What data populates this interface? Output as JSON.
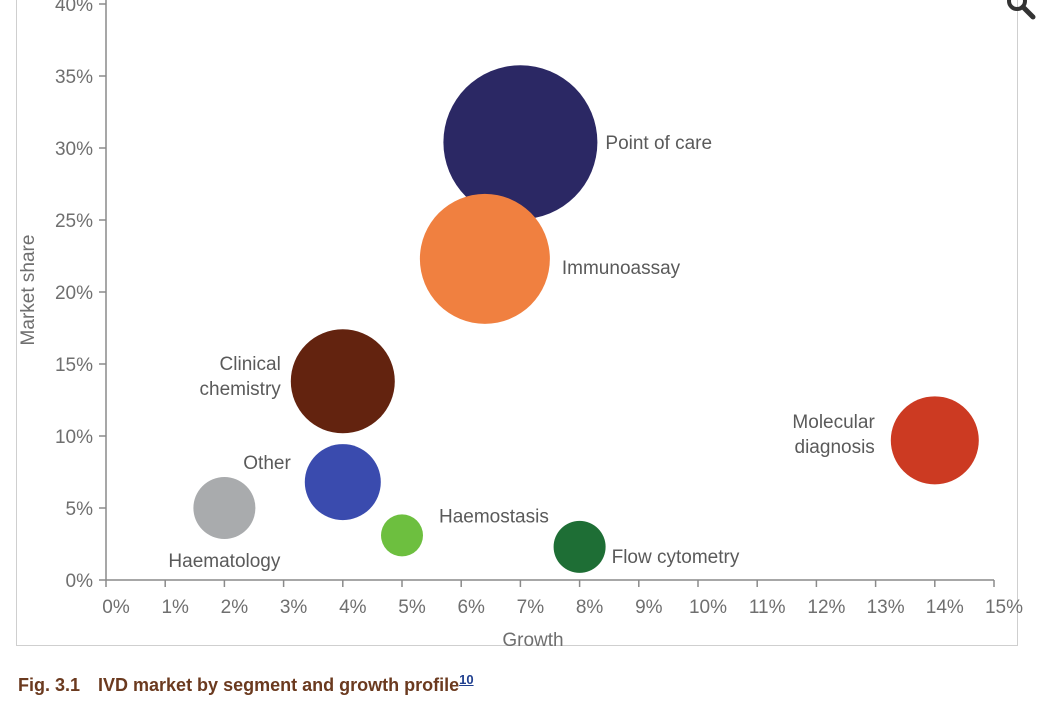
{
  "chart_data": {
    "type": "scatter",
    "xlabel": "Growth",
    "ylabel": "Market share",
    "xlim": [
      0,
      15
    ],
    "ylim": [
      0,
      40
    ],
    "x_ticks": [
      "0%",
      "1%",
      "2%",
      "3%",
      "4%",
      "5%",
      "6%",
      "7%",
      "8%",
      "9%",
      "10%",
      "11%",
      "12%",
      "13%",
      "14%",
      "15%"
    ],
    "y_ticks": [
      "0%",
      "5%",
      "10%",
      "15%",
      "20%",
      "25%",
      "30%",
      "35%",
      "40%"
    ],
    "grid": false,
    "bubbles": [
      {
        "label": "Point of care",
        "x": 7.0,
        "y": 30.4,
        "size": 77,
        "color": "#2b2864",
        "label_lines": [
          "Point of care"
        ]
      },
      {
        "label": "Immunoassay",
        "x": 6.4,
        "y": 22.3,
        "size": 65,
        "color": "#f08040",
        "label_lines": [
          "Immunoassay"
        ]
      },
      {
        "label": "Clinical chemistry",
        "x": 4.0,
        "y": 13.8,
        "size": 52,
        "color": "#63230f",
        "label_lines": [
          "Clinical",
          "chemistry"
        ]
      },
      {
        "label": "Other",
        "x": 4.0,
        "y": 6.8,
        "size": 38,
        "color": "#3a4bae",
        "label_lines": [
          "Other"
        ]
      },
      {
        "label": "Haematology",
        "x": 2.0,
        "y": 5.0,
        "size": 31,
        "color": "#a9abad",
        "label_lines": [
          "Haematology"
        ]
      },
      {
        "label": "Haemostasis",
        "x": 5.0,
        "y": 3.1,
        "size": 21,
        "color": "#6dbf3f",
        "label_lines": [
          "Haemostasis"
        ]
      },
      {
        "label": "Flow cytometry",
        "x": 8.0,
        "y": 2.3,
        "size": 26,
        "color": "#1e6e35",
        "label_lines": [
          "Flow cytometry"
        ]
      },
      {
        "label": "Molecular diagnosis",
        "x": 14.0,
        "y": 9.7,
        "size": 44,
        "color": "#cc3a22",
        "label_lines": [
          "Molecular",
          "diagnosis"
        ]
      }
    ]
  },
  "caption": {
    "number": "Fig. 3.1",
    "text": "IVD market by segment and growth profile",
    "reference": "10"
  },
  "icons": {
    "magnifier": "search-icon"
  }
}
